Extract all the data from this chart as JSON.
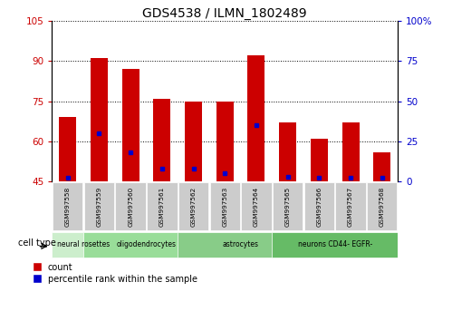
{
  "title": "GDS4538 / ILMN_1802489",
  "samples": [
    "GSM997558",
    "GSM997559",
    "GSM997560",
    "GSM997561",
    "GSM997562",
    "GSM997563",
    "GSM997564",
    "GSM997565",
    "GSM997566",
    "GSM997567",
    "GSM997568"
  ],
  "count_values": [
    69,
    91,
    87,
    76,
    75,
    75,
    92,
    67,
    61,
    67,
    56
  ],
  "percentile_values": [
    2,
    30,
    18,
    8,
    8,
    5,
    35,
    3,
    2,
    2,
    2
  ],
  "y_min": 45,
  "y_max": 105,
  "yticks_left": [
    45,
    60,
    75,
    90,
    105
  ],
  "yticks_right": [
    0,
    25,
    50,
    75,
    100
  ],
  "bar_color": "#cc0000",
  "dot_color": "#0000cc",
  "cell_types": [
    {
      "label": "neural rosettes",
      "start": 0,
      "end": 1,
      "color": "#cceecc"
    },
    {
      "label": "oligodendrocytes",
      "start": 1,
      "end": 4,
      "color": "#99dd99"
    },
    {
      "label": "astrocytes",
      "start": 4,
      "end": 7,
      "color": "#88cc88"
    },
    {
      "label": "neurons CD44- EGFR-",
      "start": 7,
      "end": 10,
      "color": "#66bb66"
    }
  ],
  "cell_type_label": "cell type",
  "legend_count": "count",
  "legend_percentile": "percentile rank within the sample",
  "bar_color_legend": "#cc0000",
  "dot_color_legend": "#0000cc",
  "axis_color_left": "#cc0000",
  "axis_color_right": "#0000cc",
  "gray_tick_bg": "#cccccc"
}
